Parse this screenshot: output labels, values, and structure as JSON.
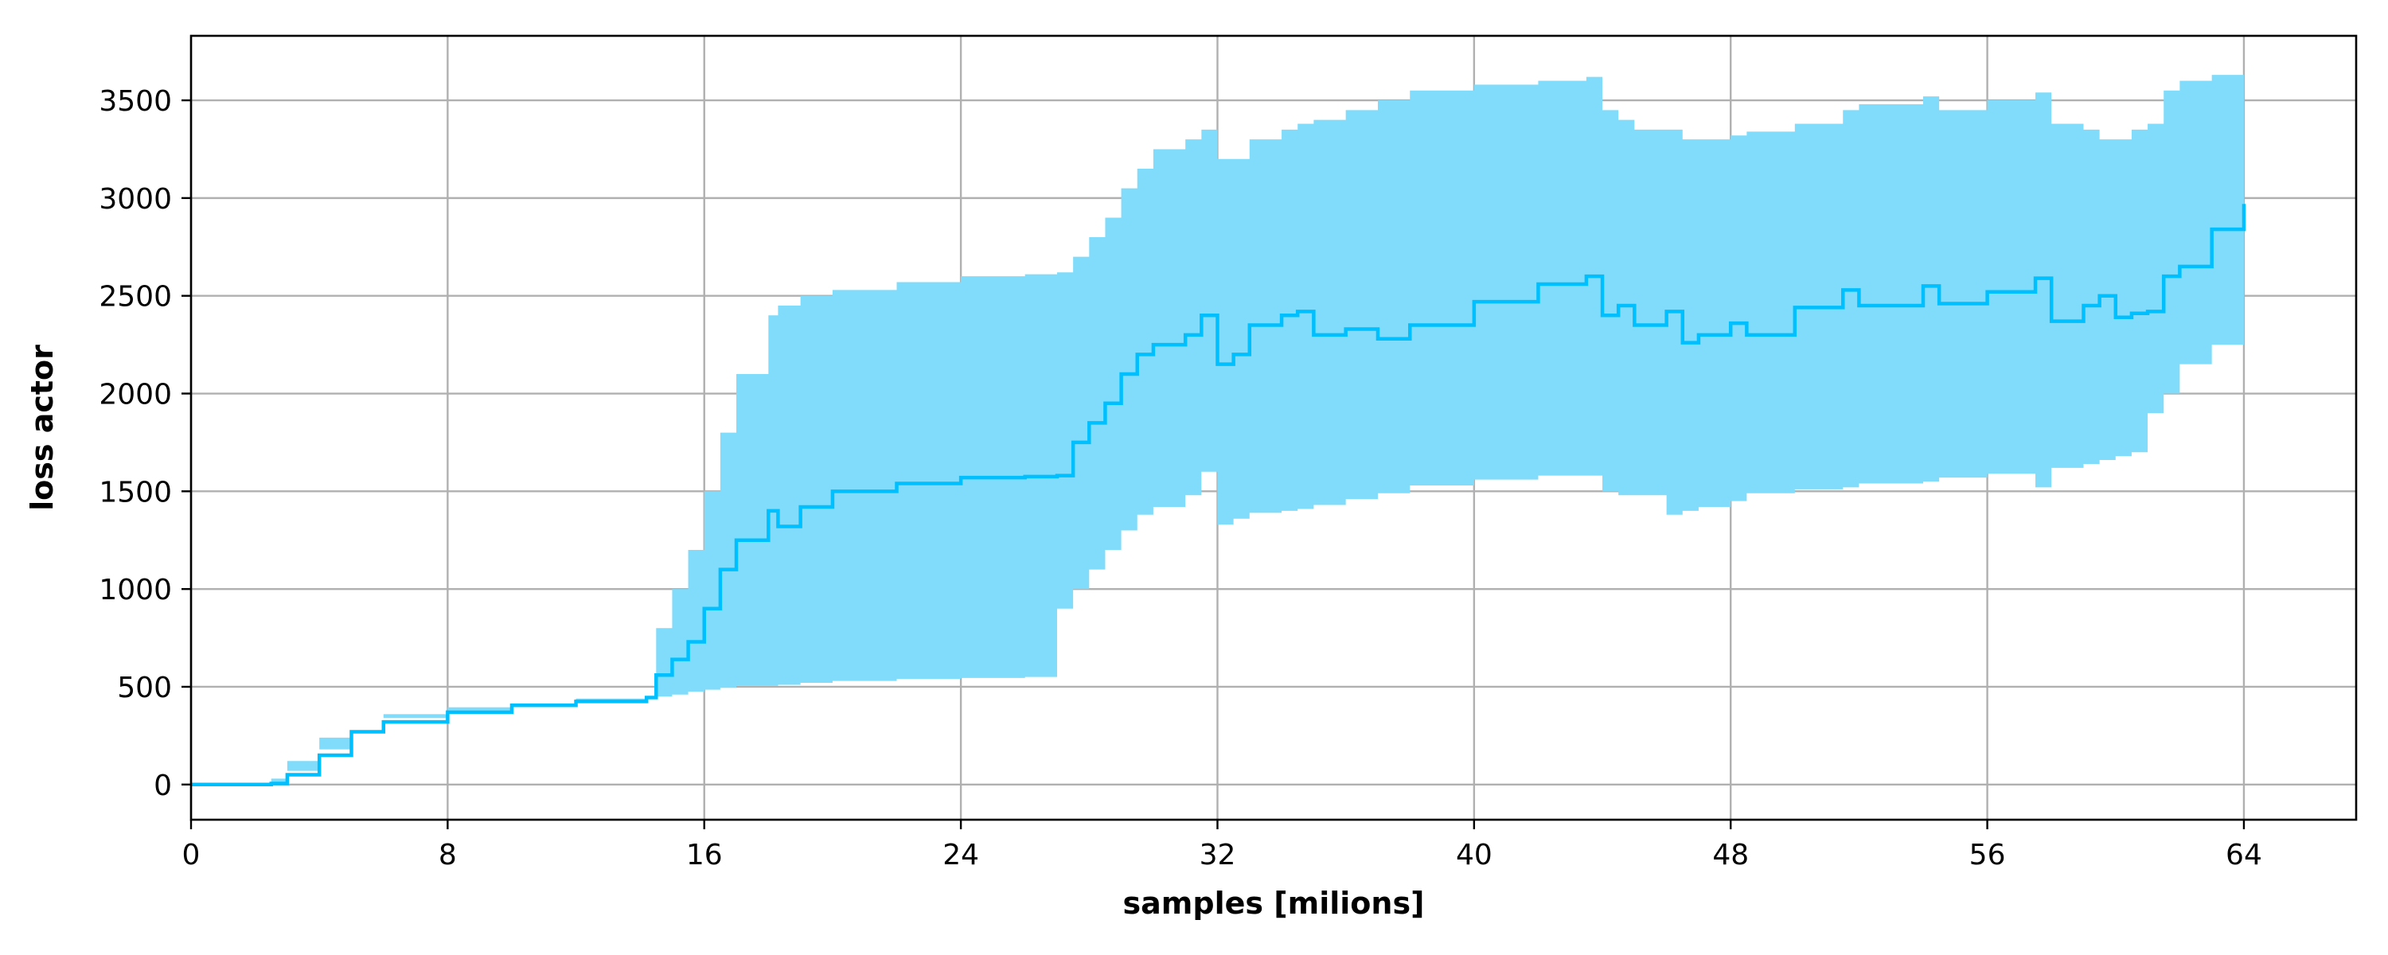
{
  "chart_data": {
    "type": "line",
    "xlabel": "samples [milions]",
    "ylabel": "loss actor",
    "xlim": [
      0,
      67.5
    ],
    "ylim": [
      -180,
      3830
    ],
    "x_ticks": [
      0,
      8,
      16,
      24,
      32,
      40,
      48,
      56,
      64
    ],
    "y_ticks": [
      0,
      500,
      1000,
      1500,
      2000,
      2500,
      3000,
      3500
    ],
    "grid": true,
    "line_color": "#00bfff",
    "band_color": "#80dcfa",
    "series": [
      {
        "style": "mean line with shaded band",
        "x": [
          0,
          2.5,
          3,
          4,
          5,
          6,
          8,
          10,
          12,
          14.2,
          14.5,
          15,
          15.5,
          16,
          16.5,
          17,
          18,
          18.3,
          19,
          20,
          22,
          24,
          26,
          27,
          27.5,
          28,
          28.5,
          29,
          29.5,
          30,
          31,
          31.5,
          32,
          32.5,
          33,
          34,
          34.5,
          35,
          36,
          37,
          38,
          40,
          42,
          43.5,
          44,
          44.5,
          45,
          46,
          46.5,
          47,
          48,
          48.5,
          50,
          51.5,
          52,
          54,
          54.5,
          56,
          57.5,
          58,
          59,
          59.5,
          60,
          60.5,
          61,
          61.5,
          62,
          63,
          64
        ],
        "mean": [
          0,
          5,
          50,
          150,
          270,
          320,
          370,
          405,
          425,
          445,
          560,
          640,
          730,
          900,
          1100,
          1250,
          1400,
          1320,
          1420,
          1500,
          1540,
          1570,
          1575,
          1580,
          1750,
          1850,
          1950,
          2100,
          2200,
          2250,
          2300,
          2400,
          2150,
          2200,
          2350,
          2400,
          2420,
          2300,
          2330,
          2280,
          2350,
          2470,
          2560,
          2600,
          2400,
          2450,
          2350,
          2420,
          2260,
          2300,
          2360,
          2300,
          2440,
          2530,
          2450,
          2550,
          2460,
          2520,
          2590,
          2370,
          2450,
          2500,
          2390,
          2410,
          2420,
          2600,
          2650,
          2840,
          2970
        ],
        "lower": [
          0,
          0,
          30,
          120,
          240,
          300,
          360,
          395,
          415,
          430,
          440,
          450,
          460,
          475,
          485,
          495,
          505,
          505,
          510,
          520,
          530,
          540,
          545,
          550,
          900,
          1000,
          1100,
          1200,
          1300,
          1380,
          1420,
          1480,
          1600,
          1330,
          1360,
          1390,
          1400,
          1410,
          1430,
          1460,
          1490,
          1530,
          1560,
          1580,
          1580,
          1500,
          1480,
          1480,
          1380,
          1400,
          1420,
          1450,
          1490,
          1510,
          1520,
          1540,
          1550,
          1570,
          1590,
          1520,
          1620,
          1640,
          1660,
          1680,
          1700,
          1900,
          2000,
          2150,
          2250
        ],
        "upper": [
          0,
          10,
          70,
          180,
          300,
          340,
          380,
          415,
          440,
          450,
          800,
          1000,
          1200,
          1500,
          1800,
          2100,
          2400,
          2450,
          2500,
          2530,
          2570,
          2600,
          2610,
          2620,
          2700,
          2800,
          2900,
          3050,
          3150,
          3250,
          3300,
          3350,
          3200,
          3200,
          3300,
          3350,
          3380,
          3400,
          3450,
          3500,
          3550,
          3580,
          3600,
          3620,
          3450,
          3400,
          3350,
          3350,
          3300,
          3300,
          3320,
          3340,
          3380,
          3450,
          3480,
          3520,
          3450,
          3500,
          3540,
          3380,
          3350,
          3300,
          3300,
          3350,
          3380,
          3550,
          3600,
          3630,
          3650
        ]
      }
    ]
  }
}
